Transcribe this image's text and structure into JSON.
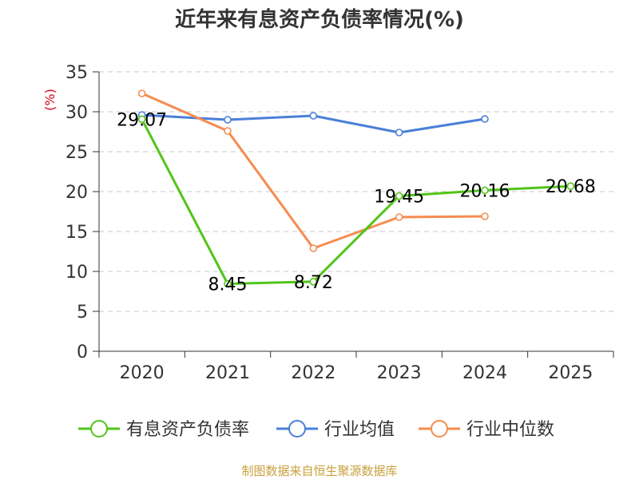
{
  "chart_data": {
    "type": "line",
    "title": "近年来有息资产负债率情况(%)",
    "ylabel": "(%)",
    "xlabel": "",
    "categories": [
      "2020",
      "2021",
      "2022",
      "2023",
      "2024",
      "2025"
    ],
    "ylim": [
      0,
      35
    ],
    "yticks": [
      0,
      5,
      10,
      15,
      20,
      25,
      30,
      35
    ],
    "grid": true,
    "legend_position": "bottom",
    "series": [
      {
        "name": "有息资产负债率",
        "color": "#52c41a",
        "values": [
          29.07,
          8.45,
          8.72,
          19.45,
          20.16,
          20.68
        ],
        "data_labels": [
          "29.07",
          "8.45",
          "8.72",
          "19.45",
          "20.16",
          "20.68"
        ]
      },
      {
        "name": "行业均值",
        "color": "#4a7fd9",
        "values": [
          29.6,
          29.0,
          29.5,
          27.4,
          29.1,
          null
        ]
      },
      {
        "name": "行业中位数",
        "color": "#f58c50",
        "values": [
          32.3,
          27.6,
          12.9,
          16.8,
          16.9,
          null
        ]
      }
    ],
    "source": "制图数据来自恒生聚源数据库"
  }
}
